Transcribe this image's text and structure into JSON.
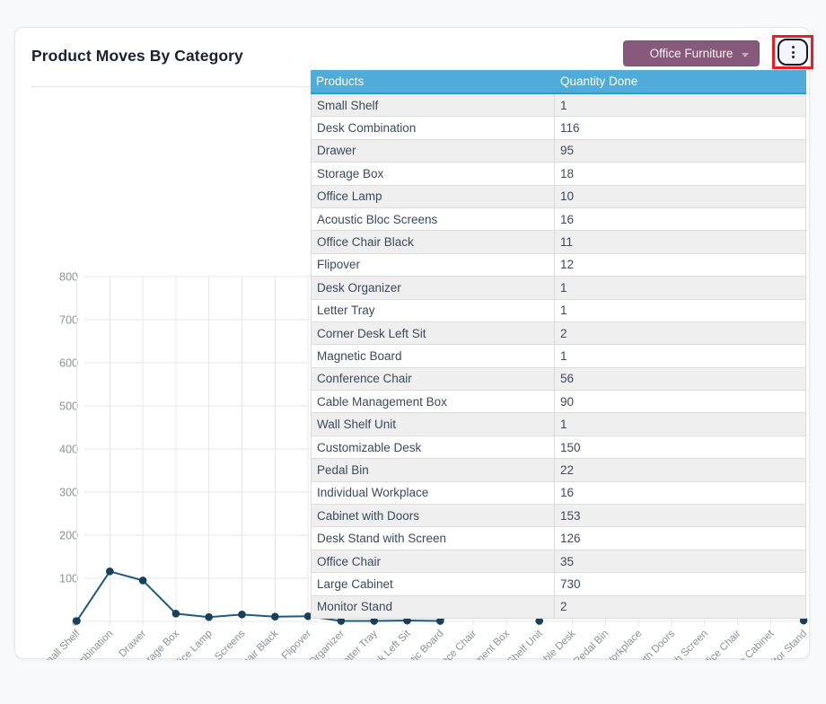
{
  "card": {
    "title": "Product Moves By Category",
    "filter_button": {
      "label": "Office Furniture",
      "color": "#875a7b"
    },
    "kebab_menu": {
      "icon": "kebab-vertical-icon",
      "highlighted": true,
      "highlight_color": "#ec1c24"
    }
  },
  "table": {
    "columns": [
      "Products",
      "Quantity Done"
    ],
    "header_color": "#4fabd7",
    "rows": [
      [
        "Small Shelf",
        "1"
      ],
      [
        "Desk Combination",
        "116"
      ],
      [
        "Drawer",
        "95"
      ],
      [
        "Storage Box",
        "18"
      ],
      [
        "Office Lamp",
        "10"
      ],
      [
        "Acoustic Bloc Screens",
        "16"
      ],
      [
        "Office Chair Black",
        "11"
      ],
      [
        "Flipover",
        "12"
      ],
      [
        "Desk Organizer",
        "1"
      ],
      [
        "Letter Tray",
        "1"
      ],
      [
        "Corner Desk Left Sit",
        "2"
      ],
      [
        "Magnetic Board",
        "1"
      ],
      [
        "Conference Chair",
        "56"
      ],
      [
        "Cable Management Box",
        "90"
      ],
      [
        "Wall Shelf Unit",
        "1"
      ],
      [
        "Customizable Desk",
        "150"
      ],
      [
        "Pedal Bin",
        "22"
      ],
      [
        "Individual Workplace",
        "16"
      ],
      [
        "Cabinet with Doors",
        "153"
      ],
      [
        "Desk Stand with Screen",
        "126"
      ],
      [
        "Office Chair",
        "35"
      ],
      [
        "Large Cabinet",
        "730"
      ],
      [
        "Monitor Stand",
        "2"
      ]
    ]
  },
  "chart_data": {
    "type": "line",
    "title": "Product Moves By Category",
    "categories": [
      "Small Shelf",
      "Desk Combination",
      "Drawer",
      "Storage Box",
      "Office Lamp",
      "Acoustic Bloc Screens",
      "Office Chair Black",
      "Flipover",
      "Desk Organizer",
      "Letter Tray",
      "Corner Desk Left Sit",
      "Magnetic Board",
      "Conference Chair",
      "Cable Management Box",
      "Wall Shelf Unit",
      "Customizable Desk",
      "Pedal Bin",
      "Individual Workplace",
      "Cabinet with Doors",
      "Desk Stand with Screen",
      "Office Chair",
      "Large Cabinet",
      "Monitor Stand"
    ],
    "values": [
      1,
      116,
      95,
      18,
      10,
      16,
      11,
      12,
      1,
      1,
      2,
      1,
      56,
      90,
      1,
      150,
      22,
      16,
      153,
      126,
      35,
      730,
      2
    ],
    "xlabel": "",
    "ylabel": "",
    "ylim": [
      0,
      800
    ],
    "yticks": [
      0,
      100,
      200,
      300,
      400,
      500,
      600,
      700,
      800
    ],
    "grid": true,
    "legend": false,
    "line_color": "#1e5b7e",
    "point_color": "#16405c",
    "grid_color": "#e8e8e8",
    "tick_label_color": "#8a8f98"
  }
}
